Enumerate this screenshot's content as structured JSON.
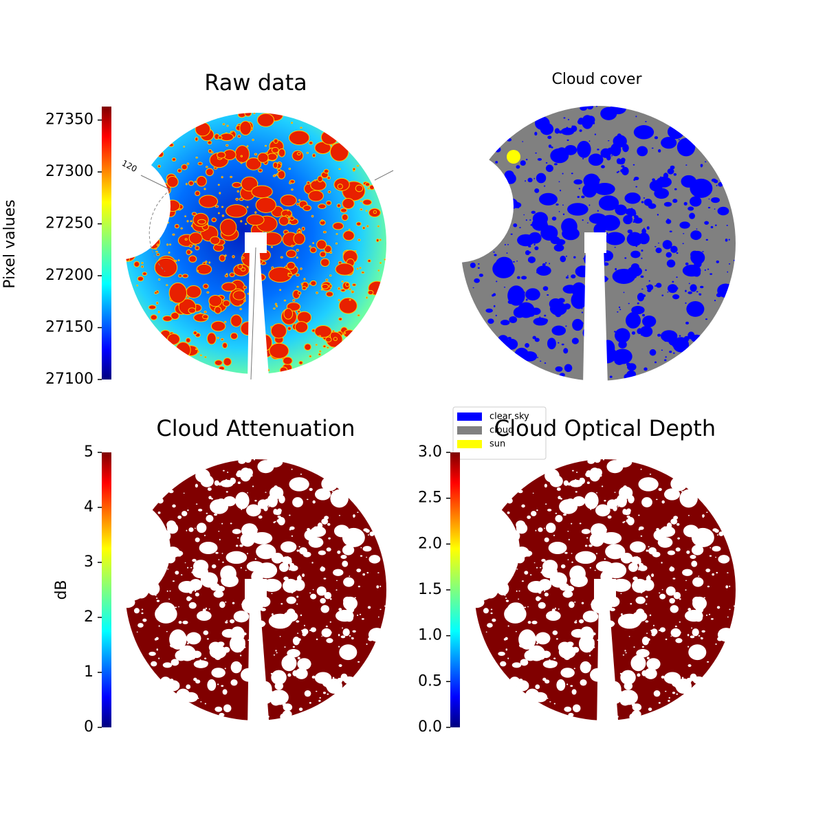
{
  "chart_data": [
    {
      "type": "image",
      "title": "Raw data",
      "annotation": "120",
      "colormap": "jet",
      "colorbar": {
        "label": "Pixel values",
        "lim": [
          27100,
          27363
        ],
        "ticks": [
          27100,
          27150,
          27200,
          27250,
          27300,
          27350
        ]
      }
    },
    {
      "type": "image",
      "title": "Cloud cover",
      "legend": [
        {
          "name": "clear sky",
          "color": "#0000ff"
        },
        {
          "name": "cloud",
          "color": "#808080"
        },
        {
          "name": "sun",
          "color": "#ffff00"
        }
      ]
    },
    {
      "type": "image",
      "title": "Cloud Attenuation",
      "colormap": "jet",
      "color": "#800000",
      "colorbar": {
        "label": "dB",
        "lim": [
          0,
          5
        ],
        "ticks": [
          0,
          1,
          2,
          3,
          4,
          5
        ]
      }
    },
    {
      "type": "image",
      "title": "Cloud Optical Depth",
      "colormap": "jet",
      "color": "#800000",
      "colorbar": {
        "lim": [
          0,
          3
        ],
        "ticks": [
          {
            "value": 0,
            "label": "0.0"
          },
          0.5,
          {
            "value": 1,
            "label": "1.0"
          },
          1.5,
          {
            "value": 2,
            "label": "2.0"
          },
          2.5,
          {
            "value": 3,
            "label": "3.0"
          }
        ]
      }
    }
  ]
}
